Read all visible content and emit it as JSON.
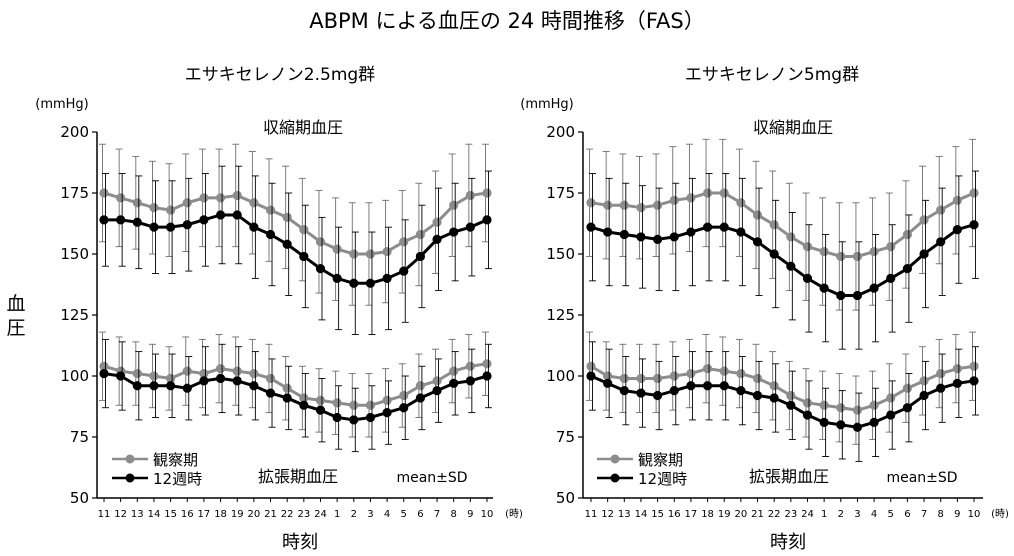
{
  "title": "ABPM による血圧の 24 時間推移（FAS）",
  "ylabel_chars": [
    "血",
    "圧"
  ],
  "colors": {
    "baseline": "#8c8c8c",
    "week12": "#000000",
    "axis": "#000000"
  },
  "chart_data": [
    {
      "type": "line",
      "title": "エサキセレノン2.5mg群",
      "y_unit": "(mmHg)",
      "x_unit": "(時)",
      "xlabel": "時刻",
      "ylim": [
        50,
        200
      ],
      "yticks": [
        50,
        75,
        100,
        125,
        150,
        175,
        200
      ],
      "categories": [
        "11",
        "12",
        "13",
        "14",
        "15",
        "16",
        "17",
        "18",
        "19",
        "20",
        "21",
        "22",
        "23",
        "24",
        "1",
        "2",
        "3",
        "4",
        "5",
        "6",
        "7",
        "8",
        "9",
        "10"
      ],
      "annotations": {
        "systolic": "収縮期血圧",
        "diastolic": "拡張期血圧",
        "stat": "mean±SD"
      },
      "legend": {
        "position": "bottom-left",
        "entries": [
          "観察期",
          "12週時"
        ]
      },
      "series": [
        {
          "name": "観察期",
          "group": "systolic",
          "values": [
            175,
            173,
            171,
            169,
            168,
            171,
            173,
            173,
            174,
            171,
            168,
            165,
            160,
            155,
            152,
            150,
            150,
            151,
            155,
            158,
            163,
            170,
            174,
            175
          ],
          "sd": [
            20,
            20,
            19,
            19,
            19,
            20,
            20,
            20,
            21,
            21,
            21,
            21,
            21,
            21,
            21,
            21,
            21,
            21,
            21,
            21,
            21,
            21,
            21,
            20
          ]
        },
        {
          "name": "12週時",
          "group": "systolic",
          "values": [
            164,
            164,
            163,
            161,
            161,
            162,
            164,
            166,
            166,
            161,
            158,
            154,
            149,
            144,
            140,
            138,
            138,
            140,
            143,
            149,
            156,
            159,
            161,
            164
          ],
          "sd": [
            19,
            19,
            19,
            19,
            19,
            19,
            19,
            20,
            20,
            21,
            21,
            21,
            21,
            21,
            21,
            21,
            21,
            21,
            21,
            21,
            21,
            20,
            20,
            20
          ]
        },
        {
          "name": "観察期",
          "group": "diastolic",
          "values": [
            104,
            102,
            101,
            100,
            99,
            102,
            101,
            103,
            102,
            101,
            99,
            95,
            91,
            90,
            89,
            88,
            88,
            90,
            92,
            96,
            98,
            102,
            104,
            105
          ],
          "sd": [
            14,
            14,
            13,
            13,
            13,
            14,
            14,
            14,
            14,
            14,
            14,
            13,
            13,
            13,
            13,
            13,
            13,
            13,
            13,
            13,
            13,
            13,
            13,
            13
          ]
        },
        {
          "name": "12週時",
          "group": "diastolic",
          "values": [
            101,
            100,
            96,
            96,
            96,
            95,
            98,
            99,
            98,
            96,
            93,
            91,
            88,
            86,
            83,
            82,
            83,
            85,
            87,
            91,
            94,
            97,
            98,
            100
          ],
          "sd": [
            14,
            14,
            14,
            13,
            13,
            13,
            14,
            14,
            14,
            14,
            14,
            13,
            13,
            13,
            13,
            13,
            13,
            13,
            13,
            13,
            13,
            13,
            13,
            13
          ]
        }
      ]
    },
    {
      "type": "line",
      "title": "エサキセレノン5mg群",
      "y_unit": "(mmHg)",
      "x_unit": "(時)",
      "xlabel": "時刻",
      "ylim": [
        50,
        200
      ],
      "yticks": [
        50,
        75,
        100,
        125,
        150,
        175,
        200
      ],
      "categories": [
        "11",
        "12",
        "13",
        "14",
        "15",
        "16",
        "17",
        "18",
        "19",
        "20",
        "21",
        "22",
        "23",
        "24",
        "1",
        "2",
        "3",
        "4",
        "5",
        "6",
        "7",
        "8",
        "9",
        "10"
      ],
      "annotations": {
        "systolic": "収縮期血圧",
        "diastolic": "拡張期血圧",
        "stat": "mean±SD"
      },
      "legend": {
        "position": "bottom-left",
        "entries": [
          "観察期",
          "12週時"
        ]
      },
      "series": [
        {
          "name": "観察期",
          "group": "systolic",
          "values": [
            171,
            170,
            170,
            169,
            170,
            172,
            173,
            175,
            175,
            171,
            166,
            162,
            157,
            153,
            151,
            149,
            149,
            151,
            153,
            158,
            164,
            168,
            172,
            175
          ],
          "sd": [
            22,
            22,
            21,
            21,
            21,
            22,
            22,
            22,
            22,
            22,
            22,
            22,
            22,
            22,
            22,
            22,
            22,
            22,
            22,
            22,
            22,
            22,
            22,
            22
          ]
        },
        {
          "name": "12週時",
          "group": "systolic",
          "values": [
            161,
            159,
            158,
            157,
            156,
            157,
            159,
            161,
            161,
            159,
            155,
            150,
            145,
            140,
            136,
            133,
            133,
            136,
            140,
            144,
            150,
            155,
            160,
            162
          ],
          "sd": [
            22,
            22,
            21,
            21,
            21,
            22,
            22,
            22,
            22,
            22,
            22,
            22,
            22,
            22,
            22,
            22,
            22,
            22,
            22,
            22,
            22,
            22,
            22,
            22
          ]
        },
        {
          "name": "観察期",
          "group": "diastolic",
          "values": [
            104,
            100,
            99,
            99,
            99,
            100,
            101,
            103,
            102,
            101,
            99,
            96,
            92,
            89,
            88,
            87,
            86,
            88,
            91,
            95,
            98,
            101,
            103,
            104
          ],
          "sd": [
            14,
            14,
            14,
            14,
            14,
            14,
            14,
            14,
            14,
            14,
            14,
            14,
            14,
            14,
            14,
            14,
            14,
            14,
            14,
            14,
            14,
            14,
            14,
            14
          ]
        },
        {
          "name": "12週時",
          "group": "diastolic",
          "values": [
            100,
            97,
            94,
            93,
            92,
            94,
            96,
            96,
            96,
            94,
            92,
            91,
            88,
            84,
            81,
            80,
            79,
            81,
            84,
            87,
            92,
            95,
            97,
            98
          ],
          "sd": [
            14,
            14,
            14,
            14,
            14,
            14,
            14,
            14,
            14,
            14,
            14,
            14,
            14,
            14,
            14,
            14,
            14,
            14,
            14,
            14,
            14,
            14,
            14,
            14
          ]
        }
      ]
    }
  ]
}
